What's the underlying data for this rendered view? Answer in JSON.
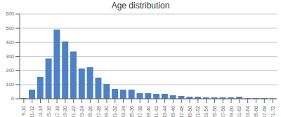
{
  "chart_data": {
    "type": "bar",
    "title": "Age distribution",
    "categories": [
      "9-10",
      "11-12",
      "13-14",
      "15-16",
      "17-18",
      "19-20",
      "21-22",
      "23-24",
      "25-26",
      "27-28",
      "29-30",
      "31-32",
      "33-34",
      "35-36",
      "37-38",
      "39-40",
      "41-42",
      "43-44",
      "45-46",
      "47-48",
      "49-50",
      "51-52",
      "53-54",
      "55-56",
      "57-58",
      "59-60",
      "61-62",
      "63-64",
      "65-66",
      "67-68",
      "71-72"
    ],
    "values": [
      5,
      65,
      155,
      285,
      490,
      405,
      335,
      215,
      225,
      150,
      105,
      70,
      65,
      65,
      40,
      40,
      35,
      35,
      25,
      20,
      15,
      15,
      10,
      10,
      10,
      10,
      15,
      5,
      5,
      5,
      3
    ],
    "color": "#4E82C2",
    "ylim": [
      0,
      600
    ],
    "yticks": [
      0,
      100,
      200,
      300,
      400,
      500,
      600
    ],
    "grid": true
  }
}
